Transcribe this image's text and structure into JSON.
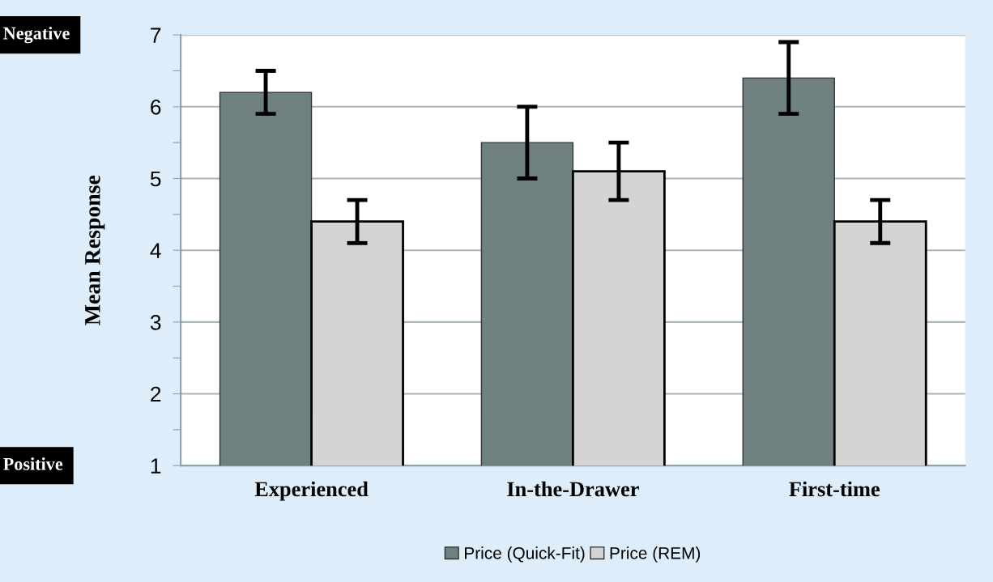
{
  "chart_data": {
    "type": "bar",
    "ylabel": "Mean Response",
    "categories": [
      "Experienced",
      "In-the-Drawer",
      "First-time"
    ],
    "series": [
      {
        "name": "Price (Quick-Fit)",
        "color": "#6e8080",
        "values": [
          6.2,
          5.5,
          6.4
        ],
        "errors": [
          0.3,
          0.5,
          0.5
        ]
      },
      {
        "name": "Price (REM)",
        "color": "#d4d4d4",
        "values": [
          4.4,
          5.1,
          4.4
        ],
        "errors": [
          0.3,
          0.4,
          0.3
        ]
      }
    ],
    "ylim": [
      1,
      7
    ],
    "yticks": [
      1,
      {
        "value": 1.5,
        "label": null
      },
      2,
      {
        "value": 2.5,
        "label": null
      },
      3,
      {
        "value": 3.5,
        "label": null
      },
      4,
      {
        "value": 4.5,
        "label": null
      },
      5,
      {
        "value": 5.5,
        "label": null
      },
      6,
      {
        "value": 6.5,
        "label": null
      },
      7
    ],
    "grid": "y",
    "legend": "bottom",
    "annotations": [
      "Negative",
      "Positive"
    ]
  }
}
